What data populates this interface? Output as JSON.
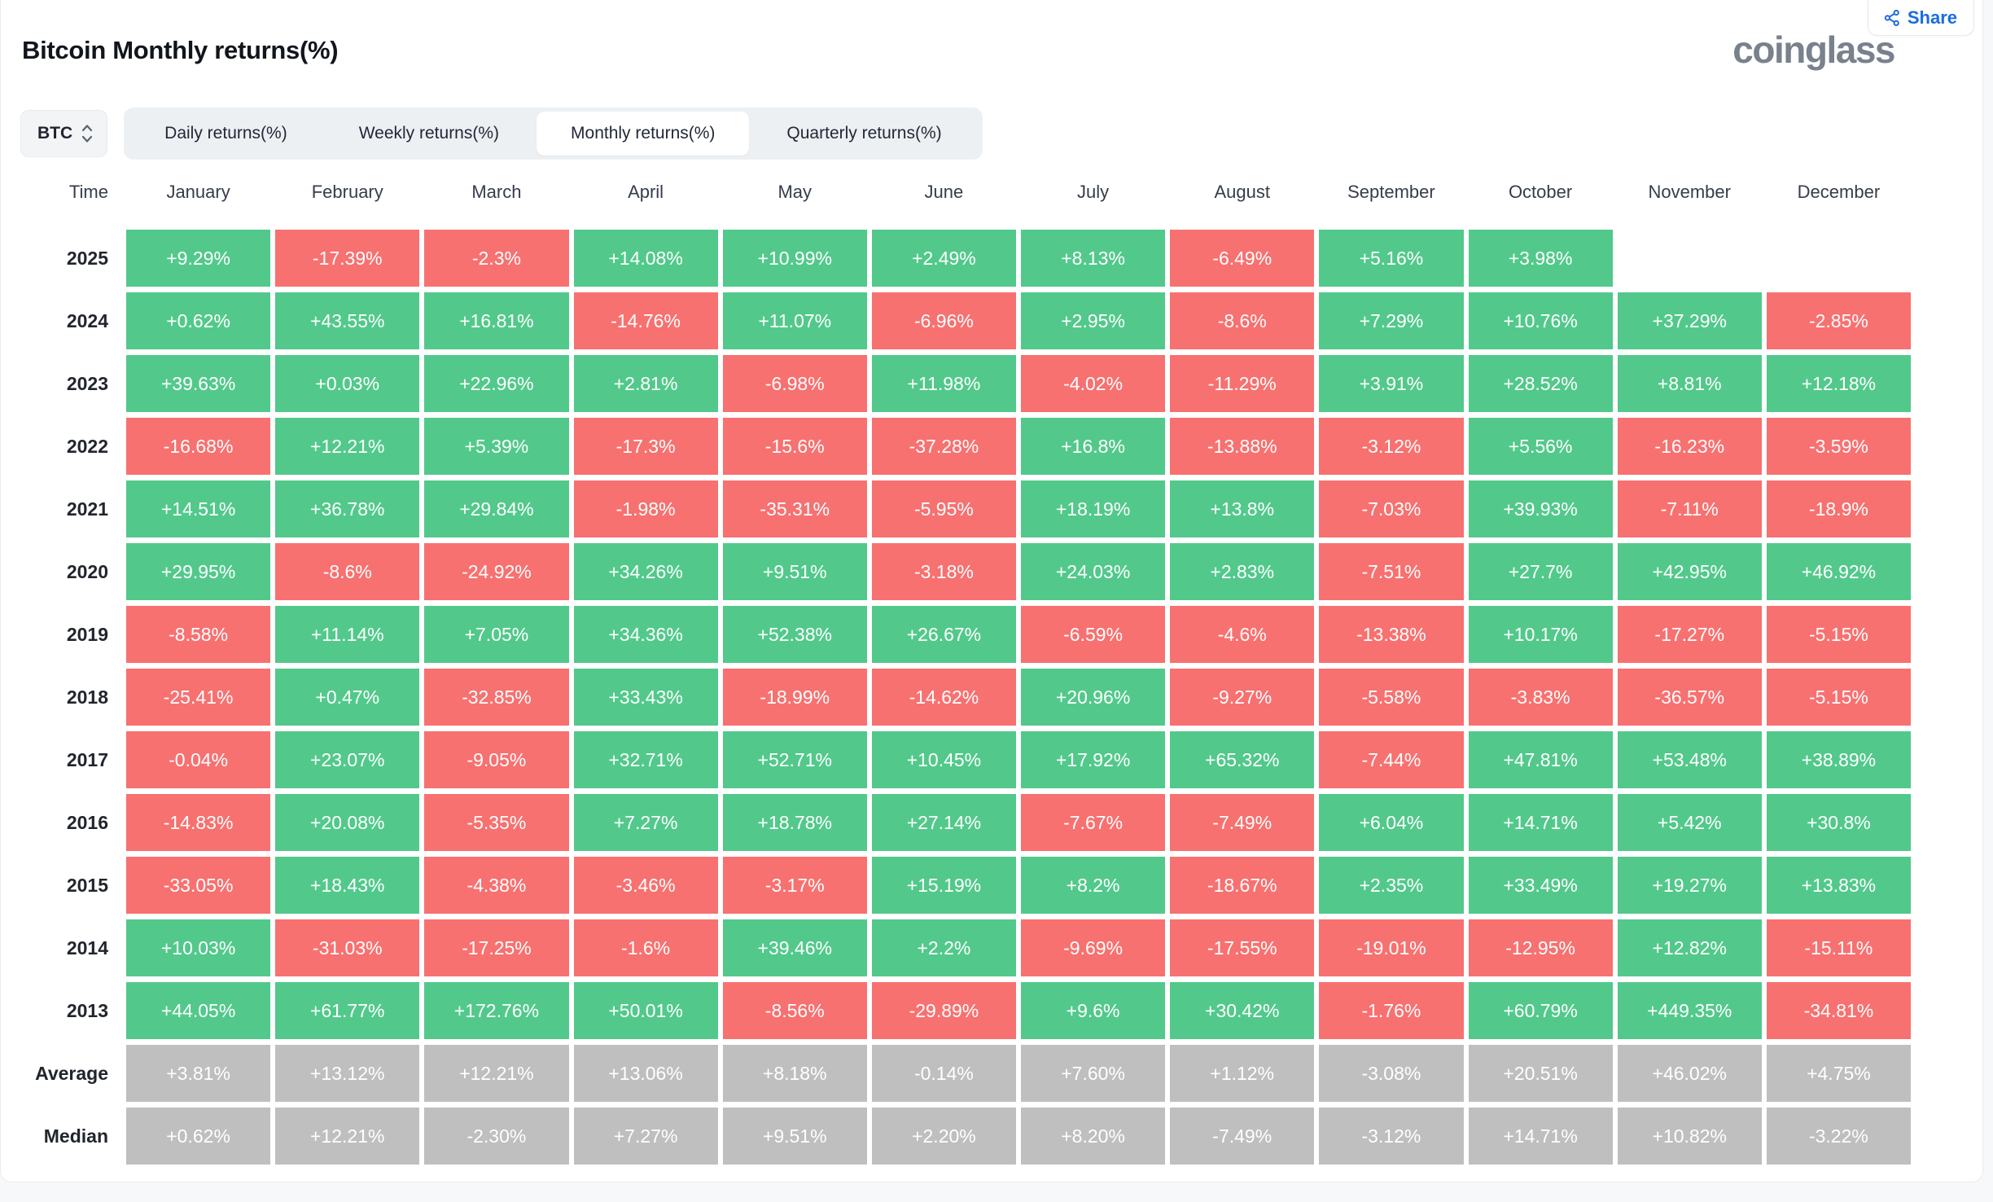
{
  "header": {
    "title": "Bitcoin Monthly returns(%)",
    "logo_text": "coinglass",
    "share_label": "Share"
  },
  "controls": {
    "symbol": "BTC",
    "tabs": [
      {
        "label": "Daily returns(%)",
        "active": false
      },
      {
        "label": "Weekly returns(%)",
        "active": false
      },
      {
        "label": "Monthly returns(%)",
        "active": true
      },
      {
        "label": "Quarterly returns(%)",
        "active": false
      }
    ]
  },
  "colors": {
    "positive_green": "#52c98b",
    "negative_red": "#f77170",
    "neutral_gray": "#bfbfbf",
    "accent_blue": "#1b6ce0"
  },
  "table": {
    "columns": [
      "Time",
      "January",
      "February",
      "March",
      "April",
      "May",
      "June",
      "July",
      "August",
      "September",
      "October",
      "November",
      "December"
    ],
    "rows": [
      {
        "label": "2025",
        "cells": [
          {
            "text": "+9.29%",
            "tone": "green"
          },
          {
            "text": "-17.39%",
            "tone": "red"
          },
          {
            "text": "-2.3%",
            "tone": "red"
          },
          {
            "text": "+14.08%",
            "tone": "green"
          },
          {
            "text": "+10.99%",
            "tone": "green"
          },
          {
            "text": "+2.49%",
            "tone": "green"
          },
          {
            "text": "+8.13%",
            "tone": "green"
          },
          {
            "text": "-6.49%",
            "tone": "red"
          },
          {
            "text": "+5.16%",
            "tone": "green"
          },
          {
            "text": "+3.98%",
            "tone": "green"
          },
          null,
          null
        ]
      },
      {
        "label": "2024",
        "cells": [
          {
            "text": "+0.62%",
            "tone": "green"
          },
          {
            "text": "+43.55%",
            "tone": "green"
          },
          {
            "text": "+16.81%",
            "tone": "green"
          },
          {
            "text": "-14.76%",
            "tone": "red"
          },
          {
            "text": "+11.07%",
            "tone": "green"
          },
          {
            "text": "-6.96%",
            "tone": "red"
          },
          {
            "text": "+2.95%",
            "tone": "green"
          },
          {
            "text": "-8.6%",
            "tone": "red"
          },
          {
            "text": "+7.29%",
            "tone": "green"
          },
          {
            "text": "+10.76%",
            "tone": "green"
          },
          {
            "text": "+37.29%",
            "tone": "green"
          },
          {
            "text": "-2.85%",
            "tone": "red"
          }
        ]
      },
      {
        "label": "2023",
        "cells": [
          {
            "text": "+39.63%",
            "tone": "green"
          },
          {
            "text": "+0.03%",
            "tone": "green"
          },
          {
            "text": "+22.96%",
            "tone": "green"
          },
          {
            "text": "+2.81%",
            "tone": "green"
          },
          {
            "text": "-6.98%",
            "tone": "red"
          },
          {
            "text": "+11.98%",
            "tone": "green"
          },
          {
            "text": "-4.02%",
            "tone": "red"
          },
          {
            "text": "-11.29%",
            "tone": "red"
          },
          {
            "text": "+3.91%",
            "tone": "green"
          },
          {
            "text": "+28.52%",
            "tone": "green"
          },
          {
            "text": "+8.81%",
            "tone": "green"
          },
          {
            "text": "+12.18%",
            "tone": "green"
          }
        ]
      },
      {
        "label": "2022",
        "cells": [
          {
            "text": "-16.68%",
            "tone": "red"
          },
          {
            "text": "+12.21%",
            "tone": "green"
          },
          {
            "text": "+5.39%",
            "tone": "green"
          },
          {
            "text": "-17.3%",
            "tone": "red"
          },
          {
            "text": "-15.6%",
            "tone": "red"
          },
          {
            "text": "-37.28%",
            "tone": "red"
          },
          {
            "text": "+16.8%",
            "tone": "green"
          },
          {
            "text": "-13.88%",
            "tone": "red"
          },
          {
            "text": "-3.12%",
            "tone": "red"
          },
          {
            "text": "+5.56%",
            "tone": "green"
          },
          {
            "text": "-16.23%",
            "tone": "red"
          },
          {
            "text": "-3.59%",
            "tone": "red"
          }
        ]
      },
      {
        "label": "2021",
        "cells": [
          {
            "text": "+14.51%",
            "tone": "green"
          },
          {
            "text": "+36.78%",
            "tone": "green"
          },
          {
            "text": "+29.84%",
            "tone": "green"
          },
          {
            "text": "-1.98%",
            "tone": "red"
          },
          {
            "text": "-35.31%",
            "tone": "red"
          },
          {
            "text": "-5.95%",
            "tone": "red"
          },
          {
            "text": "+18.19%",
            "tone": "green"
          },
          {
            "text": "+13.8%",
            "tone": "green"
          },
          {
            "text": "-7.03%",
            "tone": "red"
          },
          {
            "text": "+39.93%",
            "tone": "green"
          },
          {
            "text": "-7.11%",
            "tone": "red"
          },
          {
            "text": "-18.9%",
            "tone": "red"
          }
        ]
      },
      {
        "label": "2020",
        "cells": [
          {
            "text": "+29.95%",
            "tone": "green"
          },
          {
            "text": "-8.6%",
            "tone": "red"
          },
          {
            "text": "-24.92%",
            "tone": "red"
          },
          {
            "text": "+34.26%",
            "tone": "green"
          },
          {
            "text": "+9.51%",
            "tone": "green"
          },
          {
            "text": "-3.18%",
            "tone": "red"
          },
          {
            "text": "+24.03%",
            "tone": "green"
          },
          {
            "text": "+2.83%",
            "tone": "green"
          },
          {
            "text": "-7.51%",
            "tone": "red"
          },
          {
            "text": "+27.7%",
            "tone": "green"
          },
          {
            "text": "+42.95%",
            "tone": "green"
          },
          {
            "text": "+46.92%",
            "tone": "green"
          }
        ]
      },
      {
        "label": "2019",
        "cells": [
          {
            "text": "-8.58%",
            "tone": "red"
          },
          {
            "text": "+11.14%",
            "tone": "green"
          },
          {
            "text": "+7.05%",
            "tone": "green"
          },
          {
            "text": "+34.36%",
            "tone": "green"
          },
          {
            "text": "+52.38%",
            "tone": "green"
          },
          {
            "text": "+26.67%",
            "tone": "green"
          },
          {
            "text": "-6.59%",
            "tone": "red"
          },
          {
            "text": "-4.6%",
            "tone": "red"
          },
          {
            "text": "-13.38%",
            "tone": "red"
          },
          {
            "text": "+10.17%",
            "tone": "green"
          },
          {
            "text": "-17.27%",
            "tone": "red"
          },
          {
            "text": "-5.15%",
            "tone": "red"
          }
        ]
      },
      {
        "label": "2018",
        "cells": [
          {
            "text": "-25.41%",
            "tone": "red"
          },
          {
            "text": "+0.47%",
            "tone": "green"
          },
          {
            "text": "-32.85%",
            "tone": "red"
          },
          {
            "text": "+33.43%",
            "tone": "green"
          },
          {
            "text": "-18.99%",
            "tone": "red"
          },
          {
            "text": "-14.62%",
            "tone": "red"
          },
          {
            "text": "+20.96%",
            "tone": "green"
          },
          {
            "text": "-9.27%",
            "tone": "red"
          },
          {
            "text": "-5.58%",
            "tone": "red"
          },
          {
            "text": "-3.83%",
            "tone": "red"
          },
          {
            "text": "-36.57%",
            "tone": "red"
          },
          {
            "text": "-5.15%",
            "tone": "red"
          }
        ]
      },
      {
        "label": "2017",
        "cells": [
          {
            "text": "-0.04%",
            "tone": "red"
          },
          {
            "text": "+23.07%",
            "tone": "green"
          },
          {
            "text": "-9.05%",
            "tone": "red"
          },
          {
            "text": "+32.71%",
            "tone": "green"
          },
          {
            "text": "+52.71%",
            "tone": "green"
          },
          {
            "text": "+10.45%",
            "tone": "green"
          },
          {
            "text": "+17.92%",
            "tone": "green"
          },
          {
            "text": "+65.32%",
            "tone": "green"
          },
          {
            "text": "-7.44%",
            "tone": "red"
          },
          {
            "text": "+47.81%",
            "tone": "green"
          },
          {
            "text": "+53.48%",
            "tone": "green"
          },
          {
            "text": "+38.89%",
            "tone": "green"
          }
        ]
      },
      {
        "label": "2016",
        "cells": [
          {
            "text": "-14.83%",
            "tone": "red"
          },
          {
            "text": "+20.08%",
            "tone": "green"
          },
          {
            "text": "-5.35%",
            "tone": "red"
          },
          {
            "text": "+7.27%",
            "tone": "green"
          },
          {
            "text": "+18.78%",
            "tone": "green"
          },
          {
            "text": "+27.14%",
            "tone": "green"
          },
          {
            "text": "-7.67%",
            "tone": "red"
          },
          {
            "text": "-7.49%",
            "tone": "red"
          },
          {
            "text": "+6.04%",
            "tone": "green"
          },
          {
            "text": "+14.71%",
            "tone": "green"
          },
          {
            "text": "+5.42%",
            "tone": "green"
          },
          {
            "text": "+30.8%",
            "tone": "green"
          }
        ]
      },
      {
        "label": "2015",
        "cells": [
          {
            "text": "-33.05%",
            "tone": "red"
          },
          {
            "text": "+18.43%",
            "tone": "green"
          },
          {
            "text": "-4.38%",
            "tone": "red"
          },
          {
            "text": "-3.46%",
            "tone": "red"
          },
          {
            "text": "-3.17%",
            "tone": "red"
          },
          {
            "text": "+15.19%",
            "tone": "green"
          },
          {
            "text": "+8.2%",
            "tone": "green"
          },
          {
            "text": "-18.67%",
            "tone": "red"
          },
          {
            "text": "+2.35%",
            "tone": "green"
          },
          {
            "text": "+33.49%",
            "tone": "green"
          },
          {
            "text": "+19.27%",
            "tone": "green"
          },
          {
            "text": "+13.83%",
            "tone": "green"
          }
        ]
      },
      {
        "label": "2014",
        "cells": [
          {
            "text": "+10.03%",
            "tone": "green"
          },
          {
            "text": "-31.03%",
            "tone": "red"
          },
          {
            "text": "-17.25%",
            "tone": "red"
          },
          {
            "text": "-1.6%",
            "tone": "red"
          },
          {
            "text": "+39.46%",
            "tone": "green"
          },
          {
            "text": "+2.2%",
            "tone": "green"
          },
          {
            "text": "-9.69%",
            "tone": "red"
          },
          {
            "text": "-17.55%",
            "tone": "red"
          },
          {
            "text": "-19.01%",
            "tone": "red"
          },
          {
            "text": "-12.95%",
            "tone": "red"
          },
          {
            "text": "+12.82%",
            "tone": "green"
          },
          {
            "text": "-15.11%",
            "tone": "red"
          }
        ]
      },
      {
        "label": "2013",
        "cells": [
          {
            "text": "+44.05%",
            "tone": "green"
          },
          {
            "text": "+61.77%",
            "tone": "green"
          },
          {
            "text": "+172.76%",
            "tone": "green"
          },
          {
            "text": "+50.01%",
            "tone": "green"
          },
          {
            "text": "-8.56%",
            "tone": "red"
          },
          {
            "text": "-29.89%",
            "tone": "red"
          },
          {
            "text": "+9.6%",
            "tone": "green"
          },
          {
            "text": "+30.42%",
            "tone": "green"
          },
          {
            "text": "-1.76%",
            "tone": "red"
          },
          {
            "text": "+60.79%",
            "tone": "green"
          },
          {
            "text": "+449.35%",
            "tone": "green"
          },
          {
            "text": "-34.81%",
            "tone": "red"
          }
        ]
      },
      {
        "label": "Average",
        "cells": [
          {
            "text": "+3.81%",
            "tone": "gray"
          },
          {
            "text": "+13.12%",
            "tone": "gray"
          },
          {
            "text": "+12.21%",
            "tone": "gray"
          },
          {
            "text": "+13.06%",
            "tone": "gray"
          },
          {
            "text": "+8.18%",
            "tone": "gray"
          },
          {
            "text": "-0.14%",
            "tone": "gray"
          },
          {
            "text": "+7.60%",
            "tone": "gray"
          },
          {
            "text": "+1.12%",
            "tone": "gray"
          },
          {
            "text": "-3.08%",
            "tone": "gray"
          },
          {
            "text": "+20.51%",
            "tone": "gray"
          },
          {
            "text": "+46.02%",
            "tone": "gray"
          },
          {
            "text": "+4.75%",
            "tone": "gray"
          }
        ]
      },
      {
        "label": "Median",
        "cells": [
          {
            "text": "+0.62%",
            "tone": "gray"
          },
          {
            "text": "+12.21%",
            "tone": "gray"
          },
          {
            "text": "-2.30%",
            "tone": "gray"
          },
          {
            "text": "+7.27%",
            "tone": "gray"
          },
          {
            "text": "+9.51%",
            "tone": "gray"
          },
          {
            "text": "+2.20%",
            "tone": "gray"
          },
          {
            "text": "+8.20%",
            "tone": "gray"
          },
          {
            "text": "-7.49%",
            "tone": "gray"
          },
          {
            "text": "-3.12%",
            "tone": "gray"
          },
          {
            "text": "+14.71%",
            "tone": "gray"
          },
          {
            "text": "+10.82%",
            "tone": "gray"
          },
          {
            "text": "-3.22%",
            "tone": "gray"
          }
        ]
      }
    ]
  }
}
